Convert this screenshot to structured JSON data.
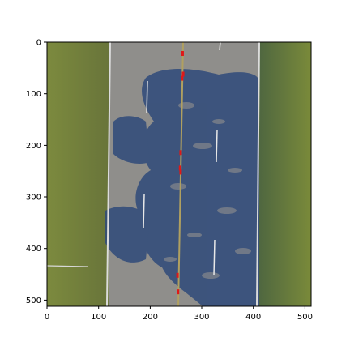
{
  "figure": {
    "x_ticks": [
      "0",
      "100",
      "200",
      "300",
      "400",
      "500"
    ],
    "y_ticks": [
      "0",
      "100",
      "200",
      "300",
      "400",
      "500"
    ]
  },
  "image": {
    "description_name": "aerial-road-photo",
    "extent": {
      "x": [
        0,
        512
      ],
      "y": [
        0,
        512
      ]
    },
    "colors": {
      "grass_left": "#6f7a3a",
      "grass_right": "#5f7338",
      "asphalt": "#8e8d8a",
      "shadow": "#2f4a78",
      "lane_line": "#e8e8e8",
      "center_line": "#a89b5a",
      "marker": "#e01818"
    },
    "markers": [
      {
        "x": 263,
        "y": 22
      },
      {
        "x": 264,
        "y": 62
      },
      {
        "x": 262,
        "y": 70
      },
      {
        "x": 259,
        "y": 214
      },
      {
        "x": 258,
        "y": 244
      },
      {
        "x": 259,
        "y": 252
      },
      {
        "x": 253,
        "y": 452
      },
      {
        "x": 254,
        "y": 484
      }
    ]
  },
  "chart_data": {
    "type": "image",
    "xlim": [
      0,
      512
    ],
    "ylim": [
      512,
      0
    ],
    "xticks": [
      0,
      100,
      200,
      300,
      400,
      500
    ],
    "yticks": [
      0,
      100,
      200,
      300,
      400,
      500
    ],
    "title": "",
    "xlabel": "",
    "ylabel": ""
  }
}
